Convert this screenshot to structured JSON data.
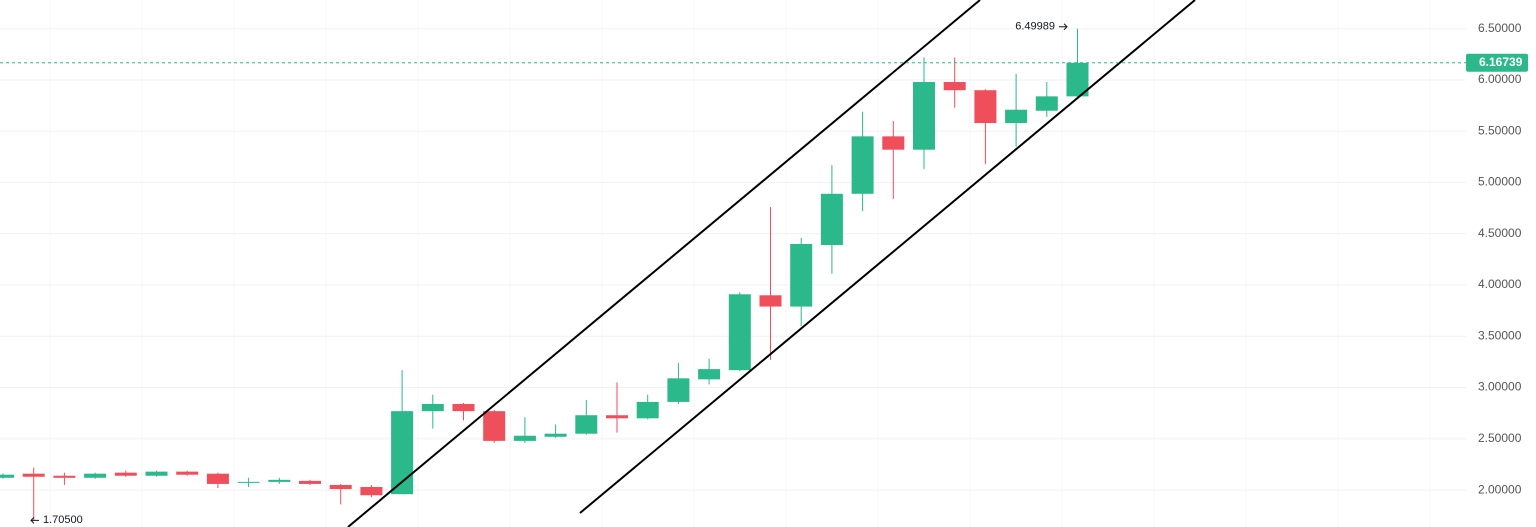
{
  "chart_data": {
    "type": "candlestick",
    "open": [
      2.12,
      2.16,
      2.14,
      2.12,
      2.17,
      2.14,
      2.18,
      2.16,
      2.07,
      2.08,
      2.09,
      2.05,
      2.03,
      1.96,
      2.77,
      2.84,
      2.77,
      2.48,
      2.52,
      2.55,
      2.73,
      2.7,
      2.86,
      3.08,
      3.17,
      3.9,
      3.79,
      4.39,
      4.89,
      5.45,
      5.32,
      5.98,
      5.9,
      5.58,
      5.7,
      5.84
    ],
    "high": [
      2.16,
      2.22,
      2.17,
      2.17,
      2.19,
      2.19,
      2.19,
      2.17,
      2.12,
      2.12,
      2.1,
      2.06,
      2.05,
      3.17,
      2.93,
      2.85,
      2.78,
      2.71,
      2.64,
      2.88,
      3.05,
      2.93,
      3.24,
      3.28,
      3.93,
      4.76,
      4.46,
      5.17,
      5.69,
      5.6,
      6.22,
      6.22,
      5.91,
      6.06,
      5.98,
      6.49989
    ],
    "low": [
      2.11,
      1.705,
      2.05,
      2.11,
      2.13,
      2.13,
      2.14,
      2.02,
      2.03,
      2.06,
      2.05,
      1.86,
      1.93,
      1.96,
      2.6,
      2.68,
      2.46,
      2.46,
      2.51,
      2.54,
      2.56,
      2.69,
      2.84,
      3.03,
      3.16,
      3.27,
      3.6,
      4.11,
      4.72,
      4.84,
      5.13,
      5.73,
      5.18,
      5.35,
      5.64,
      5.82
    ],
    "close": [
      2.15,
      2.13,
      2.12,
      2.16,
      2.14,
      2.18,
      2.15,
      2.06,
      2.08,
      2.1,
      2.06,
      2.01,
      1.95,
      2.77,
      2.84,
      2.77,
      2.48,
      2.53,
      2.55,
      2.73,
      2.7,
      2.86,
      3.09,
      3.18,
      3.91,
      3.79,
      4.4,
      4.89,
      5.45,
      5.32,
      5.98,
      5.9,
      5.58,
      5.71,
      5.84,
      6.16739
    ],
    "up_color": "#2bb88a",
    "down_color": "#ef4e5b",
    "ylim": [
      1.64,
      6.78
    ],
    "yticks": [
      {
        "value": 2.0,
        "label": "2.00000"
      },
      {
        "value": 2.5,
        "label": "2.50000"
      },
      {
        "value": 3.0,
        "label": "3.00000"
      },
      {
        "value": 3.5,
        "label": "3.50000"
      },
      {
        "value": 4.0,
        "label": "4.00000"
      },
      {
        "value": 4.5,
        "label": "4.50000"
      },
      {
        "value": 5.0,
        "label": "5.00000"
      },
      {
        "value": 5.5,
        "label": "5.50000"
      },
      {
        "value": 6.0,
        "label": "6.00000"
      },
      {
        "value": 6.5,
        "label": "6.50000"
      }
    ],
    "grid": true,
    "annotations": [
      {
        "value": 6.49989,
        "label": "6.49989"
      },
      {
        "value": 1.705,
        "label": "1.70500"
      },
      {
        "value": 6.16739,
        "label": "6.16739"
      }
    ]
  }
}
